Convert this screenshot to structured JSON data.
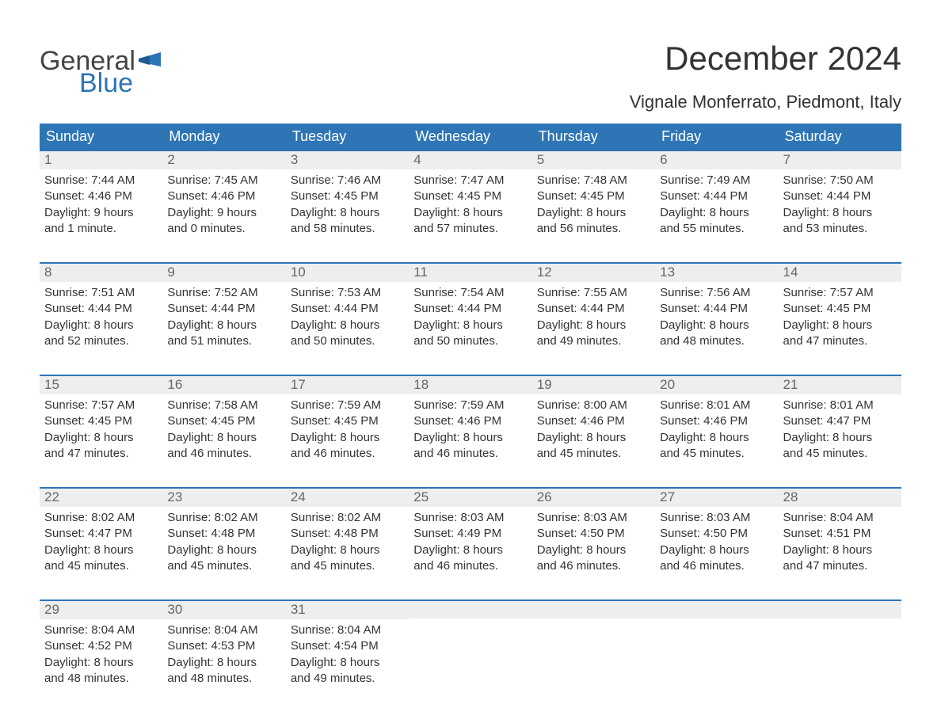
{
  "logo": {
    "part1": "General",
    "part2": "Blue",
    "flag_color": "#2e75b6",
    "text_color_dark": "#444444"
  },
  "title": "December 2024",
  "location": "Vignale Monferrato, Piedmont, Italy",
  "colors": {
    "header_bg": "#2e75b6",
    "header_text": "#ffffff",
    "daynum_bg": "#eeeeee",
    "daynum_text": "#666666",
    "border": "#2e75b6",
    "body_text": "#333333"
  },
  "day_names": [
    "Sunday",
    "Monday",
    "Tuesday",
    "Wednesday",
    "Thursday",
    "Friday",
    "Saturday"
  ],
  "weeks": [
    [
      {
        "n": "1",
        "sunrise": "Sunrise: 7:44 AM",
        "sunset": "Sunset: 4:46 PM",
        "daylight1": "Daylight: 9 hours",
        "daylight2": "and 1 minute."
      },
      {
        "n": "2",
        "sunrise": "Sunrise: 7:45 AM",
        "sunset": "Sunset: 4:46 PM",
        "daylight1": "Daylight: 9 hours",
        "daylight2": "and 0 minutes."
      },
      {
        "n": "3",
        "sunrise": "Sunrise: 7:46 AM",
        "sunset": "Sunset: 4:45 PM",
        "daylight1": "Daylight: 8 hours",
        "daylight2": "and 58 minutes."
      },
      {
        "n": "4",
        "sunrise": "Sunrise: 7:47 AM",
        "sunset": "Sunset: 4:45 PM",
        "daylight1": "Daylight: 8 hours",
        "daylight2": "and 57 minutes."
      },
      {
        "n": "5",
        "sunrise": "Sunrise: 7:48 AM",
        "sunset": "Sunset: 4:45 PM",
        "daylight1": "Daylight: 8 hours",
        "daylight2": "and 56 minutes."
      },
      {
        "n": "6",
        "sunrise": "Sunrise: 7:49 AM",
        "sunset": "Sunset: 4:44 PM",
        "daylight1": "Daylight: 8 hours",
        "daylight2": "and 55 minutes."
      },
      {
        "n": "7",
        "sunrise": "Sunrise: 7:50 AM",
        "sunset": "Sunset: 4:44 PM",
        "daylight1": "Daylight: 8 hours",
        "daylight2": "and 53 minutes."
      }
    ],
    [
      {
        "n": "8",
        "sunrise": "Sunrise: 7:51 AM",
        "sunset": "Sunset: 4:44 PM",
        "daylight1": "Daylight: 8 hours",
        "daylight2": "and 52 minutes."
      },
      {
        "n": "9",
        "sunrise": "Sunrise: 7:52 AM",
        "sunset": "Sunset: 4:44 PM",
        "daylight1": "Daylight: 8 hours",
        "daylight2": "and 51 minutes."
      },
      {
        "n": "10",
        "sunrise": "Sunrise: 7:53 AM",
        "sunset": "Sunset: 4:44 PM",
        "daylight1": "Daylight: 8 hours",
        "daylight2": "and 50 minutes."
      },
      {
        "n": "11",
        "sunrise": "Sunrise: 7:54 AM",
        "sunset": "Sunset: 4:44 PM",
        "daylight1": "Daylight: 8 hours",
        "daylight2": "and 50 minutes."
      },
      {
        "n": "12",
        "sunrise": "Sunrise: 7:55 AM",
        "sunset": "Sunset: 4:44 PM",
        "daylight1": "Daylight: 8 hours",
        "daylight2": "and 49 minutes."
      },
      {
        "n": "13",
        "sunrise": "Sunrise: 7:56 AM",
        "sunset": "Sunset: 4:44 PM",
        "daylight1": "Daylight: 8 hours",
        "daylight2": "and 48 minutes."
      },
      {
        "n": "14",
        "sunrise": "Sunrise: 7:57 AM",
        "sunset": "Sunset: 4:45 PM",
        "daylight1": "Daylight: 8 hours",
        "daylight2": "and 47 minutes."
      }
    ],
    [
      {
        "n": "15",
        "sunrise": "Sunrise: 7:57 AM",
        "sunset": "Sunset: 4:45 PM",
        "daylight1": "Daylight: 8 hours",
        "daylight2": "and 47 minutes."
      },
      {
        "n": "16",
        "sunrise": "Sunrise: 7:58 AM",
        "sunset": "Sunset: 4:45 PM",
        "daylight1": "Daylight: 8 hours",
        "daylight2": "and 46 minutes."
      },
      {
        "n": "17",
        "sunrise": "Sunrise: 7:59 AM",
        "sunset": "Sunset: 4:45 PM",
        "daylight1": "Daylight: 8 hours",
        "daylight2": "and 46 minutes."
      },
      {
        "n": "18",
        "sunrise": "Sunrise: 7:59 AM",
        "sunset": "Sunset: 4:46 PM",
        "daylight1": "Daylight: 8 hours",
        "daylight2": "and 46 minutes."
      },
      {
        "n": "19",
        "sunrise": "Sunrise: 8:00 AM",
        "sunset": "Sunset: 4:46 PM",
        "daylight1": "Daylight: 8 hours",
        "daylight2": "and 45 minutes."
      },
      {
        "n": "20",
        "sunrise": "Sunrise: 8:01 AM",
        "sunset": "Sunset: 4:46 PM",
        "daylight1": "Daylight: 8 hours",
        "daylight2": "and 45 minutes."
      },
      {
        "n": "21",
        "sunrise": "Sunrise: 8:01 AM",
        "sunset": "Sunset: 4:47 PM",
        "daylight1": "Daylight: 8 hours",
        "daylight2": "and 45 minutes."
      }
    ],
    [
      {
        "n": "22",
        "sunrise": "Sunrise: 8:02 AM",
        "sunset": "Sunset: 4:47 PM",
        "daylight1": "Daylight: 8 hours",
        "daylight2": "and 45 minutes."
      },
      {
        "n": "23",
        "sunrise": "Sunrise: 8:02 AM",
        "sunset": "Sunset: 4:48 PM",
        "daylight1": "Daylight: 8 hours",
        "daylight2": "and 45 minutes."
      },
      {
        "n": "24",
        "sunrise": "Sunrise: 8:02 AM",
        "sunset": "Sunset: 4:48 PM",
        "daylight1": "Daylight: 8 hours",
        "daylight2": "and 45 minutes."
      },
      {
        "n": "25",
        "sunrise": "Sunrise: 8:03 AM",
        "sunset": "Sunset: 4:49 PM",
        "daylight1": "Daylight: 8 hours",
        "daylight2": "and 46 minutes."
      },
      {
        "n": "26",
        "sunrise": "Sunrise: 8:03 AM",
        "sunset": "Sunset: 4:50 PM",
        "daylight1": "Daylight: 8 hours",
        "daylight2": "and 46 minutes."
      },
      {
        "n": "27",
        "sunrise": "Sunrise: 8:03 AM",
        "sunset": "Sunset: 4:50 PM",
        "daylight1": "Daylight: 8 hours",
        "daylight2": "and 46 minutes."
      },
      {
        "n": "28",
        "sunrise": "Sunrise: 8:04 AM",
        "sunset": "Sunset: 4:51 PM",
        "daylight1": "Daylight: 8 hours",
        "daylight2": "and 47 minutes."
      }
    ],
    [
      {
        "n": "29",
        "sunrise": "Sunrise: 8:04 AM",
        "sunset": "Sunset: 4:52 PM",
        "daylight1": "Daylight: 8 hours",
        "daylight2": "and 48 minutes."
      },
      {
        "n": "30",
        "sunrise": "Sunrise: 8:04 AM",
        "sunset": "Sunset: 4:53 PM",
        "daylight1": "Daylight: 8 hours",
        "daylight2": "and 48 minutes."
      },
      {
        "n": "31",
        "sunrise": "Sunrise: 8:04 AM",
        "sunset": "Sunset: 4:54 PM",
        "daylight1": "Daylight: 8 hours",
        "daylight2": "and 49 minutes."
      },
      {
        "n": "",
        "sunrise": "",
        "sunset": "",
        "daylight1": "",
        "daylight2": ""
      },
      {
        "n": "",
        "sunrise": "",
        "sunset": "",
        "daylight1": "",
        "daylight2": ""
      },
      {
        "n": "",
        "sunrise": "",
        "sunset": "",
        "daylight1": "",
        "daylight2": ""
      },
      {
        "n": "",
        "sunrise": "",
        "sunset": "",
        "daylight1": "",
        "daylight2": ""
      }
    ]
  ]
}
